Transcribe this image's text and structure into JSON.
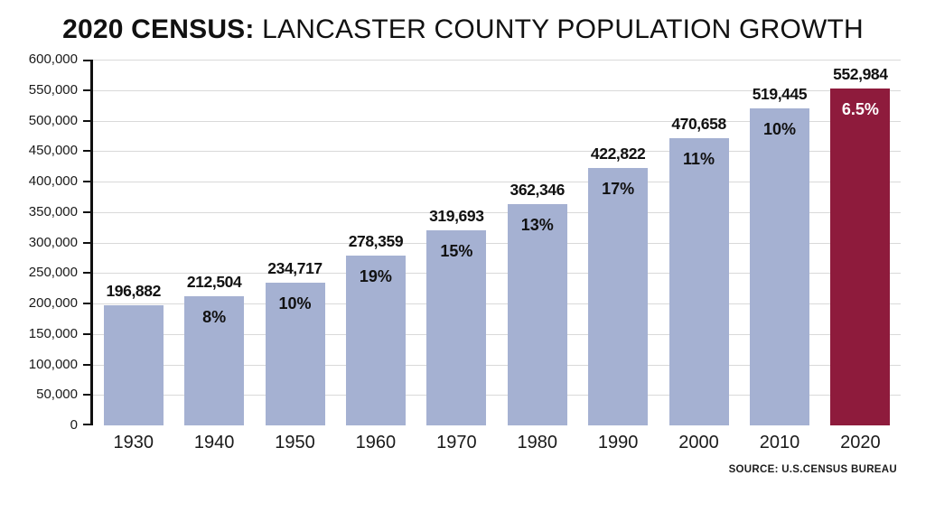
{
  "title": {
    "bold": "2020 CENSUS:",
    "regular": "LANCASTER COUNTY POPULATION GROWTH"
  },
  "source": "SOURCE: U.S.CENSUS BUREAU",
  "chart_data": {
    "type": "bar",
    "title": "2020 CENSUS: LANCASTER COUNTY POPULATION GROWTH",
    "categories": [
      "1930",
      "1940",
      "1950",
      "1960",
      "1970",
      "1980",
      "1990",
      "2000",
      "2010",
      "2020"
    ],
    "values": [
      196882,
      212504,
      234717,
      278359,
      319693,
      362346,
      422822,
      470658,
      519445,
      552984
    ],
    "value_labels": [
      "196,882",
      "212,504",
      "234,717",
      "278,359",
      "319,693",
      "362,346",
      "422,822",
      "470,658",
      "519,445",
      "552,984"
    ],
    "growth_labels": [
      "",
      "8%",
      "10%",
      "19%",
      "15%",
      "13%",
      "17%",
      "11%",
      "10%",
      "6.5%"
    ],
    "xlabel": "",
    "ylabel": "",
    "ylim": [
      0,
      600000
    ],
    "ytick_step": 50000,
    "grid": true,
    "legend": "none",
    "bar_color": "#a5b1d2",
    "highlight_color": "#8e1b3c",
    "highlight_index": 9,
    "highlight_text_color": "#ffffff"
  }
}
